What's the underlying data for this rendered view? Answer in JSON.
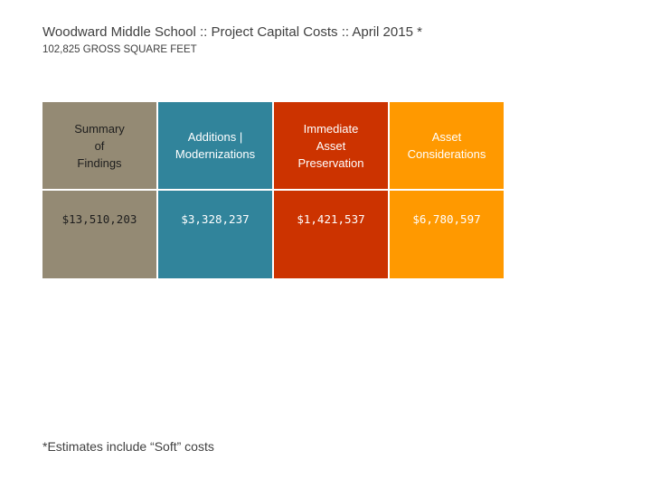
{
  "header": {
    "title": "Woodward Middle School :: Project Capital Costs :: April 2015 *",
    "subtitle": "102,825 GROSS SQUARE FEET"
  },
  "table": {
    "columns": [
      {
        "label": "Summary\nof\nFindings",
        "value": "$13,510,203",
        "color": "#948a74"
      },
      {
        "label": "Additions |\nModernizations",
        "value": "$3,328,237",
        "color": "#31849b"
      },
      {
        "label": "Immediate\nAsset\nPreservation",
        "value": "$1,421,537",
        "color": "#cc3300"
      },
      {
        "label": "Asset\nConsiderations",
        "value": "$6,780,597",
        "color": "#ff9900"
      }
    ]
  },
  "footnote": {
    "text": "*Estimates include “Soft” costs"
  }
}
